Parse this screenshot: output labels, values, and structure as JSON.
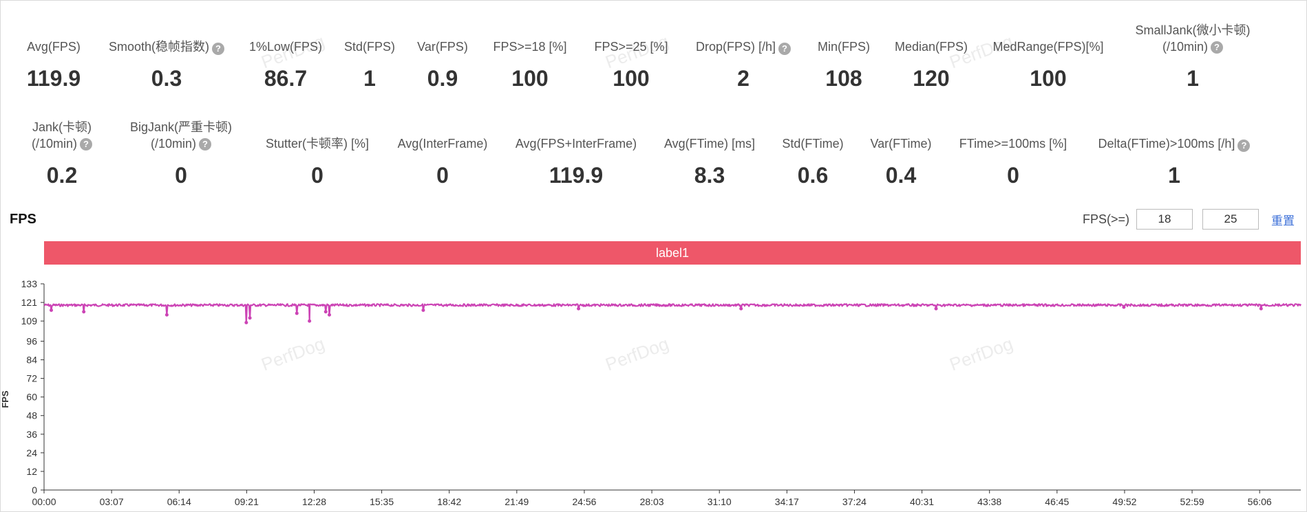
{
  "metrics_row1": [
    {
      "label": "Avg(FPS)",
      "value": "119.9",
      "help": false
    },
    {
      "label": "Smooth(稳帧指数)",
      "value": "0.3",
      "help": true
    },
    {
      "label": "1%Low(FPS)",
      "value": "86.7",
      "help": false
    },
    {
      "label": "Std(FPS)",
      "value": "1",
      "help": false
    },
    {
      "label": "Var(FPS)",
      "value": "0.9",
      "help": false
    },
    {
      "label": "FPS>=18 [%]",
      "value": "100",
      "help": false
    },
    {
      "label": "FPS>=25 [%]",
      "value": "100",
      "help": false
    },
    {
      "label": "Drop(FPS) [/h]",
      "value": "2",
      "help": true
    },
    {
      "label": "Min(FPS)",
      "value": "108",
      "help": false
    },
    {
      "label": "Median(FPS)",
      "value": "120",
      "help": false
    },
    {
      "label": "MedRange(FPS)[%]",
      "value": "100",
      "help": false
    },
    {
      "label": "SmallJank(微小卡顿)",
      "label2": "(/10min)",
      "value": "1",
      "help": true
    }
  ],
  "metrics_row2": [
    {
      "label": "Jank(卡顿)",
      "label2": "(/10min)",
      "value": "0.2",
      "help": true
    },
    {
      "label": "BigJank(严重卡顿)",
      "label2": "(/10min)",
      "value": "0",
      "help": true
    },
    {
      "label": "Stutter(卡顿率) [%]",
      "value": "0",
      "help": false
    },
    {
      "label": "Avg(InterFrame)",
      "value": "0",
      "help": false
    },
    {
      "label": "Avg(FPS+InterFrame)",
      "value": "119.9",
      "help": false
    },
    {
      "label": "Avg(FTime) [ms]",
      "value": "8.3",
      "help": false
    },
    {
      "label": "Std(FTime)",
      "value": "0.6",
      "help": false
    },
    {
      "label": "Var(FTime)",
      "value": "0.4",
      "help": false
    },
    {
      "label": "FTime>=100ms [%]",
      "value": "0",
      "help": false
    },
    {
      "label": "Delta(FTime)>100ms [/h]",
      "value": "1",
      "help": true
    }
  ],
  "help_glyph": "?",
  "section": {
    "title": "FPS"
  },
  "threshold": {
    "label": "FPS(>=)",
    "value1": "18",
    "value2": "25",
    "reset_label": "重置"
  },
  "label_bar": "label1",
  "watermark": "PerfDog",
  "colors": {
    "line": "#cc44b5",
    "label_bar": "#ee5769",
    "reset_link": "#3b6fd8"
  },
  "chart_data": {
    "type": "line",
    "ylabel": "FPS",
    "ylim": [
      0,
      133
    ],
    "yticks": [
      0,
      12,
      24,
      36,
      48,
      60,
      72,
      84,
      96,
      109,
      121,
      133
    ],
    "xticks": [
      "00:00",
      "03:07",
      "06:14",
      "09:21",
      "12:28",
      "15:35",
      "18:42",
      "21:49",
      "24:56",
      "28:03",
      "31:10",
      "34:17",
      "37:24",
      "40:31",
      "43:38",
      "46:45",
      "49:52",
      "52:59",
      "56:06"
    ],
    "x_range_seconds": [
      0,
      3480
    ],
    "baseline": 120,
    "noise": 1.5,
    "dips": [
      {
        "t": 20,
        "v": 116
      },
      {
        "t": 110,
        "v": 115
      },
      {
        "t": 340,
        "v": 113
      },
      {
        "t": 560,
        "v": 108
      },
      {
        "t": 570,
        "v": 111
      },
      {
        "t": 700,
        "v": 114
      },
      {
        "t": 735,
        "v": 109
      },
      {
        "t": 780,
        "v": 115
      },
      {
        "t": 790,
        "v": 113
      },
      {
        "t": 1050,
        "v": 116
      },
      {
        "t": 1480,
        "v": 117
      },
      {
        "t": 1930,
        "v": 117
      },
      {
        "t": 2470,
        "v": 117
      },
      {
        "t": 2990,
        "v": 118
      },
      {
        "t": 3370,
        "v": 117
      }
    ],
    "grid": false
  }
}
